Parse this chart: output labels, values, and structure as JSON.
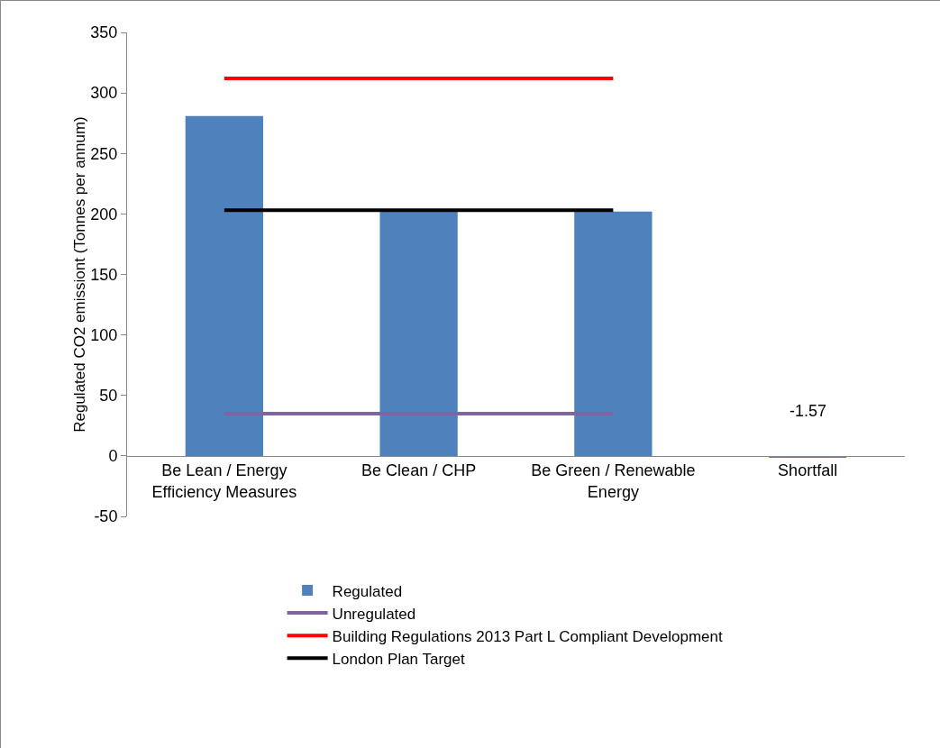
{
  "chart_data": {
    "type": "bar",
    "ylabel": "Regulated CO2 emissiont (Tonnes per annum)",
    "categories": [
      "Be Lean / Energy Efficiency Measures",
      "Be Clean / CHP",
      "Be Green / Renewable Energy",
      "Shortfall"
    ],
    "series": [
      {
        "name": "Regulated",
        "color": "#4f81bd",
        "values": [
          281,
          203,
          202,
          -1.57
        ],
        "value_labels": [
          null,
          null,
          null,
          "-1.57"
        ]
      },
      {
        "name": "Unregulated",
        "type": "line",
        "color": "#8064a2",
        "values": [
          35,
          35,
          35,
          null
        ]
      },
      {
        "name": "Building Regulations 2013 Part L Compliant Development",
        "type": "line",
        "color": "#ff0000",
        "values": [
          312,
          312,
          312,
          null
        ]
      },
      {
        "name": "London Plan Target",
        "type": "line",
        "color": "#000000",
        "values": [
          203,
          203,
          203,
          null
        ]
      }
    ],
    "ylim": [
      -50,
      350
    ],
    "yticks": [
      -50,
      0,
      50,
      100,
      150,
      200,
      250,
      300,
      350
    ],
    "grid": false,
    "legend": "bottom",
    "marker": "none",
    "line_style": "solid"
  }
}
